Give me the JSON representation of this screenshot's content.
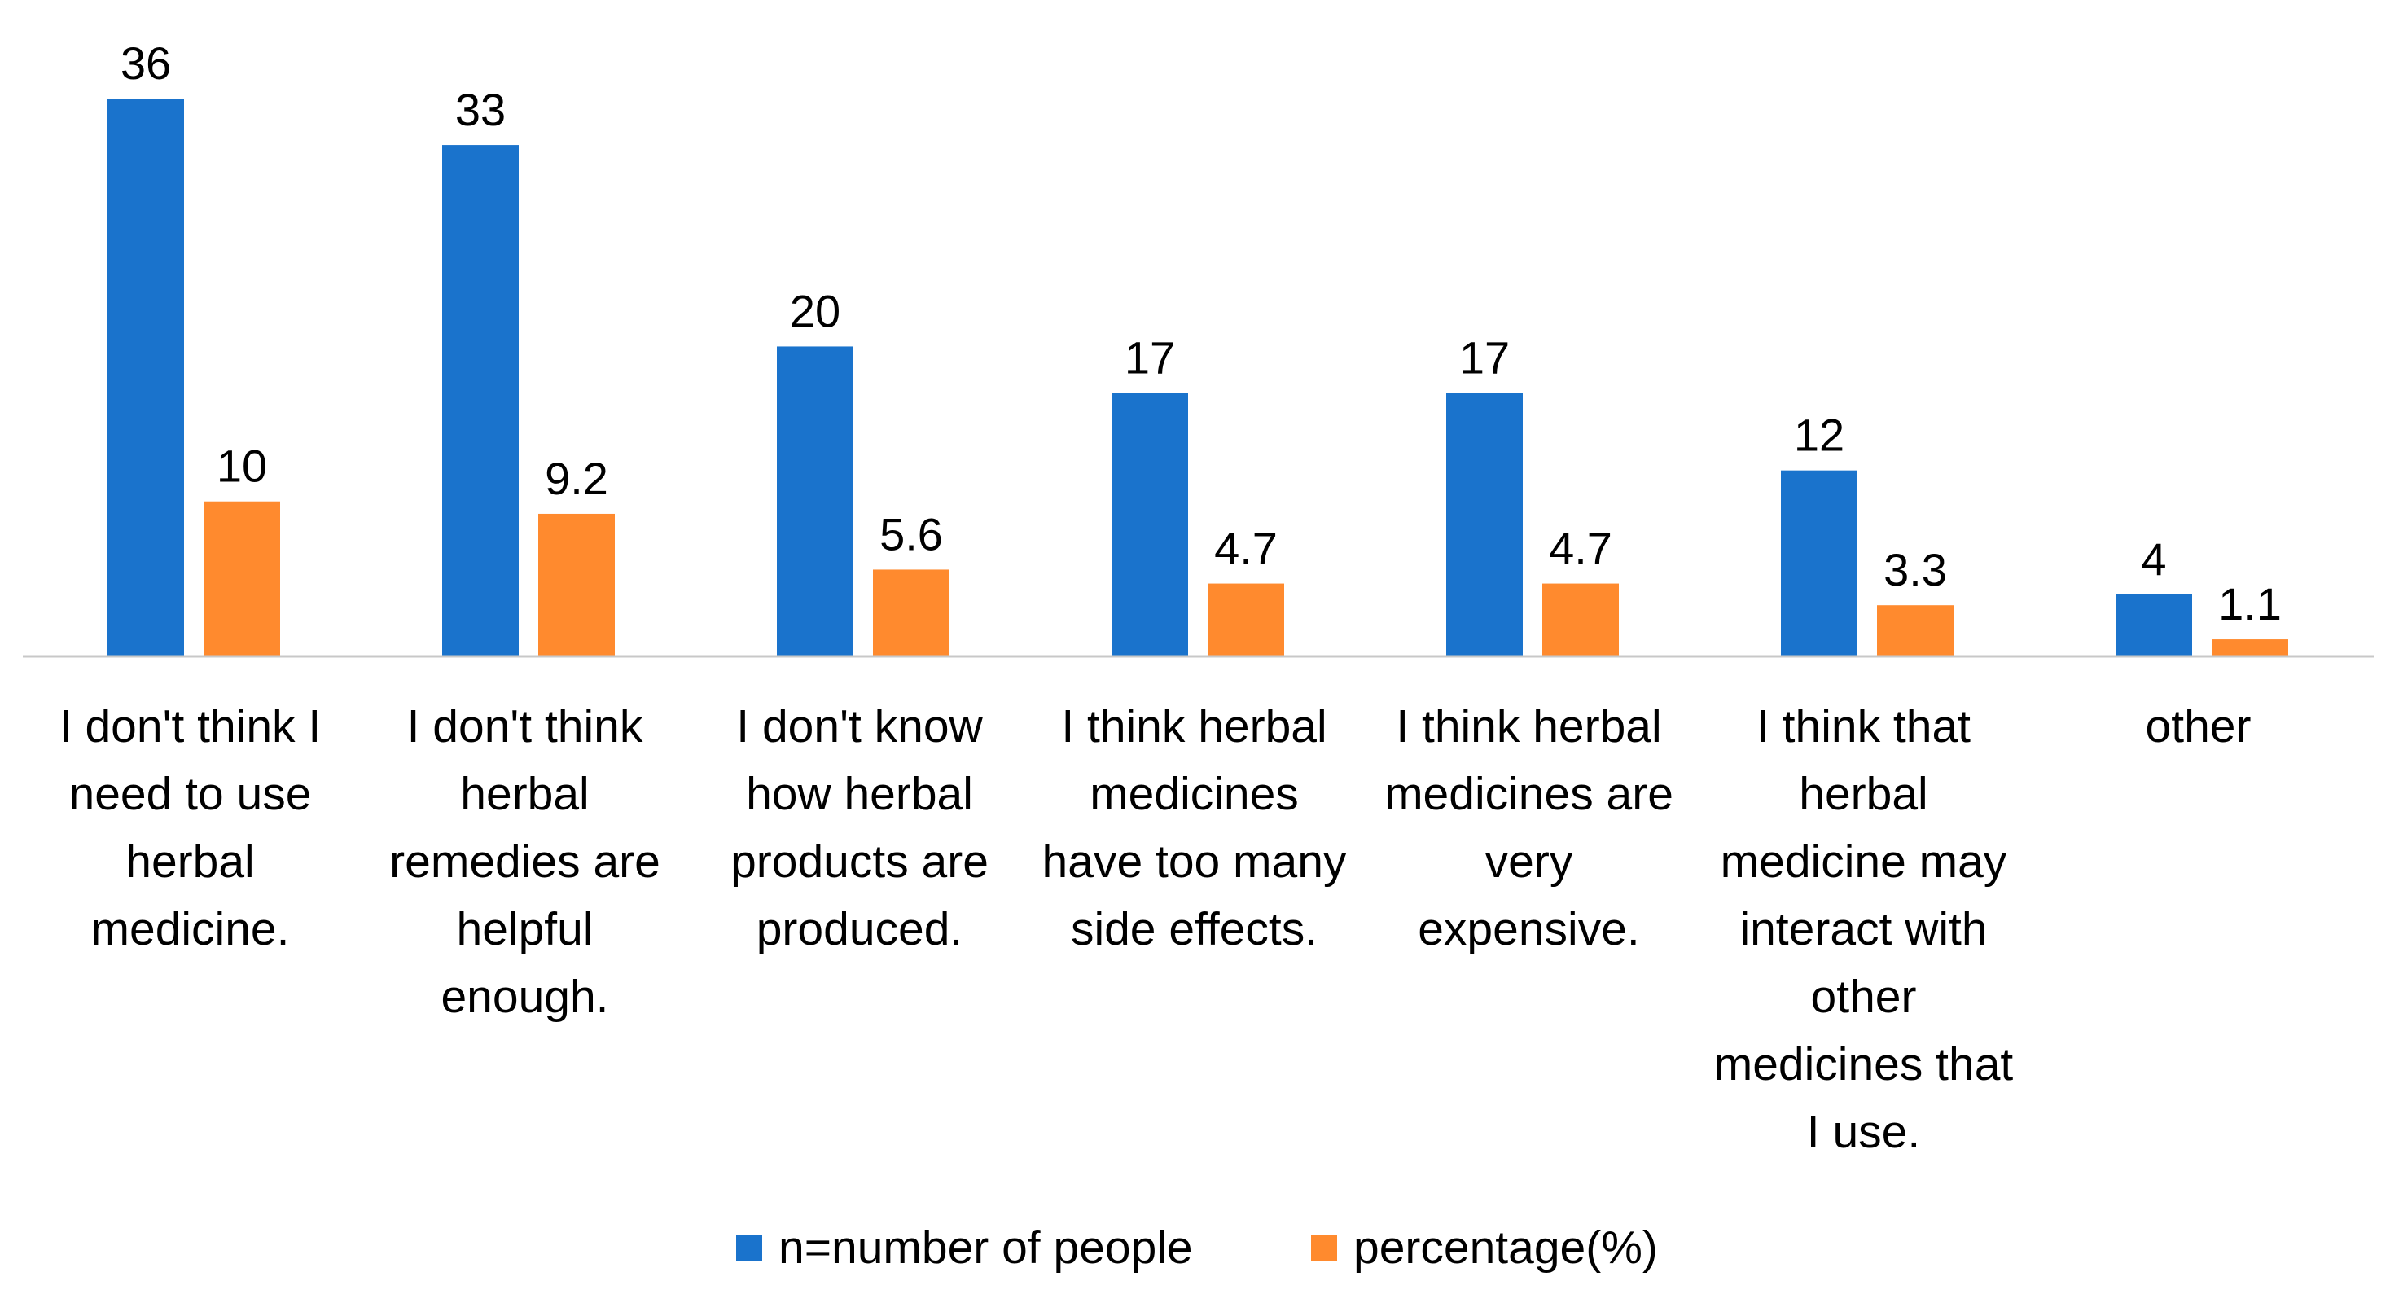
{
  "chart_data": {
    "type": "bar",
    "title": "",
    "xlabel": "",
    "ylabel": "",
    "ylim": [
      0,
      36
    ],
    "grid": false,
    "legend_position": "bottom",
    "categories": [
      "I don't think I need to use herbal medicine.",
      "I don't think herbal remedies are helpful enough.",
      "I don't know how herbal products are produced.",
      "I think herbal medicines have too many side effects.",
      "I think herbal medicines are very expensive.",
      "I think that herbal medicine may interact with other medicines that I use.",
      "other"
    ],
    "category_lines": [
      [
        "I don't think I",
        "need to use",
        "herbal",
        "medicine."
      ],
      [
        "I don't think",
        "herbal",
        "remedies are",
        "helpful",
        "enough."
      ],
      [
        "I don't know",
        "how herbal",
        "products are",
        "produced."
      ],
      [
        "I think herbal",
        "medicines",
        "have too many",
        "side effects."
      ],
      [
        "I think herbal",
        "medicines are",
        "very",
        "expensive."
      ],
      [
        "I think that",
        "herbal",
        "medicine may",
        "interact with",
        "other",
        "medicines that",
        "I use."
      ],
      [
        "other"
      ]
    ],
    "series": [
      {
        "name": "n=number of people",
        "color": "#1A73CC",
        "values": [
          36,
          33,
          20,
          17,
          17,
          12,
          4
        ],
        "labels": [
          "36",
          "33",
          "20",
          "17",
          "17",
          "12",
          "4"
        ]
      },
      {
        "name": "percentage(%)",
        "color": "#FF8A2E",
        "values": [
          10,
          9.2,
          5.6,
          4.7,
          4.7,
          3.3,
          1.1
        ],
        "labels": [
          "10",
          "9.2",
          "5.6",
          "4.7",
          "4.7",
          "3.3",
          "1.1"
        ]
      }
    ]
  }
}
